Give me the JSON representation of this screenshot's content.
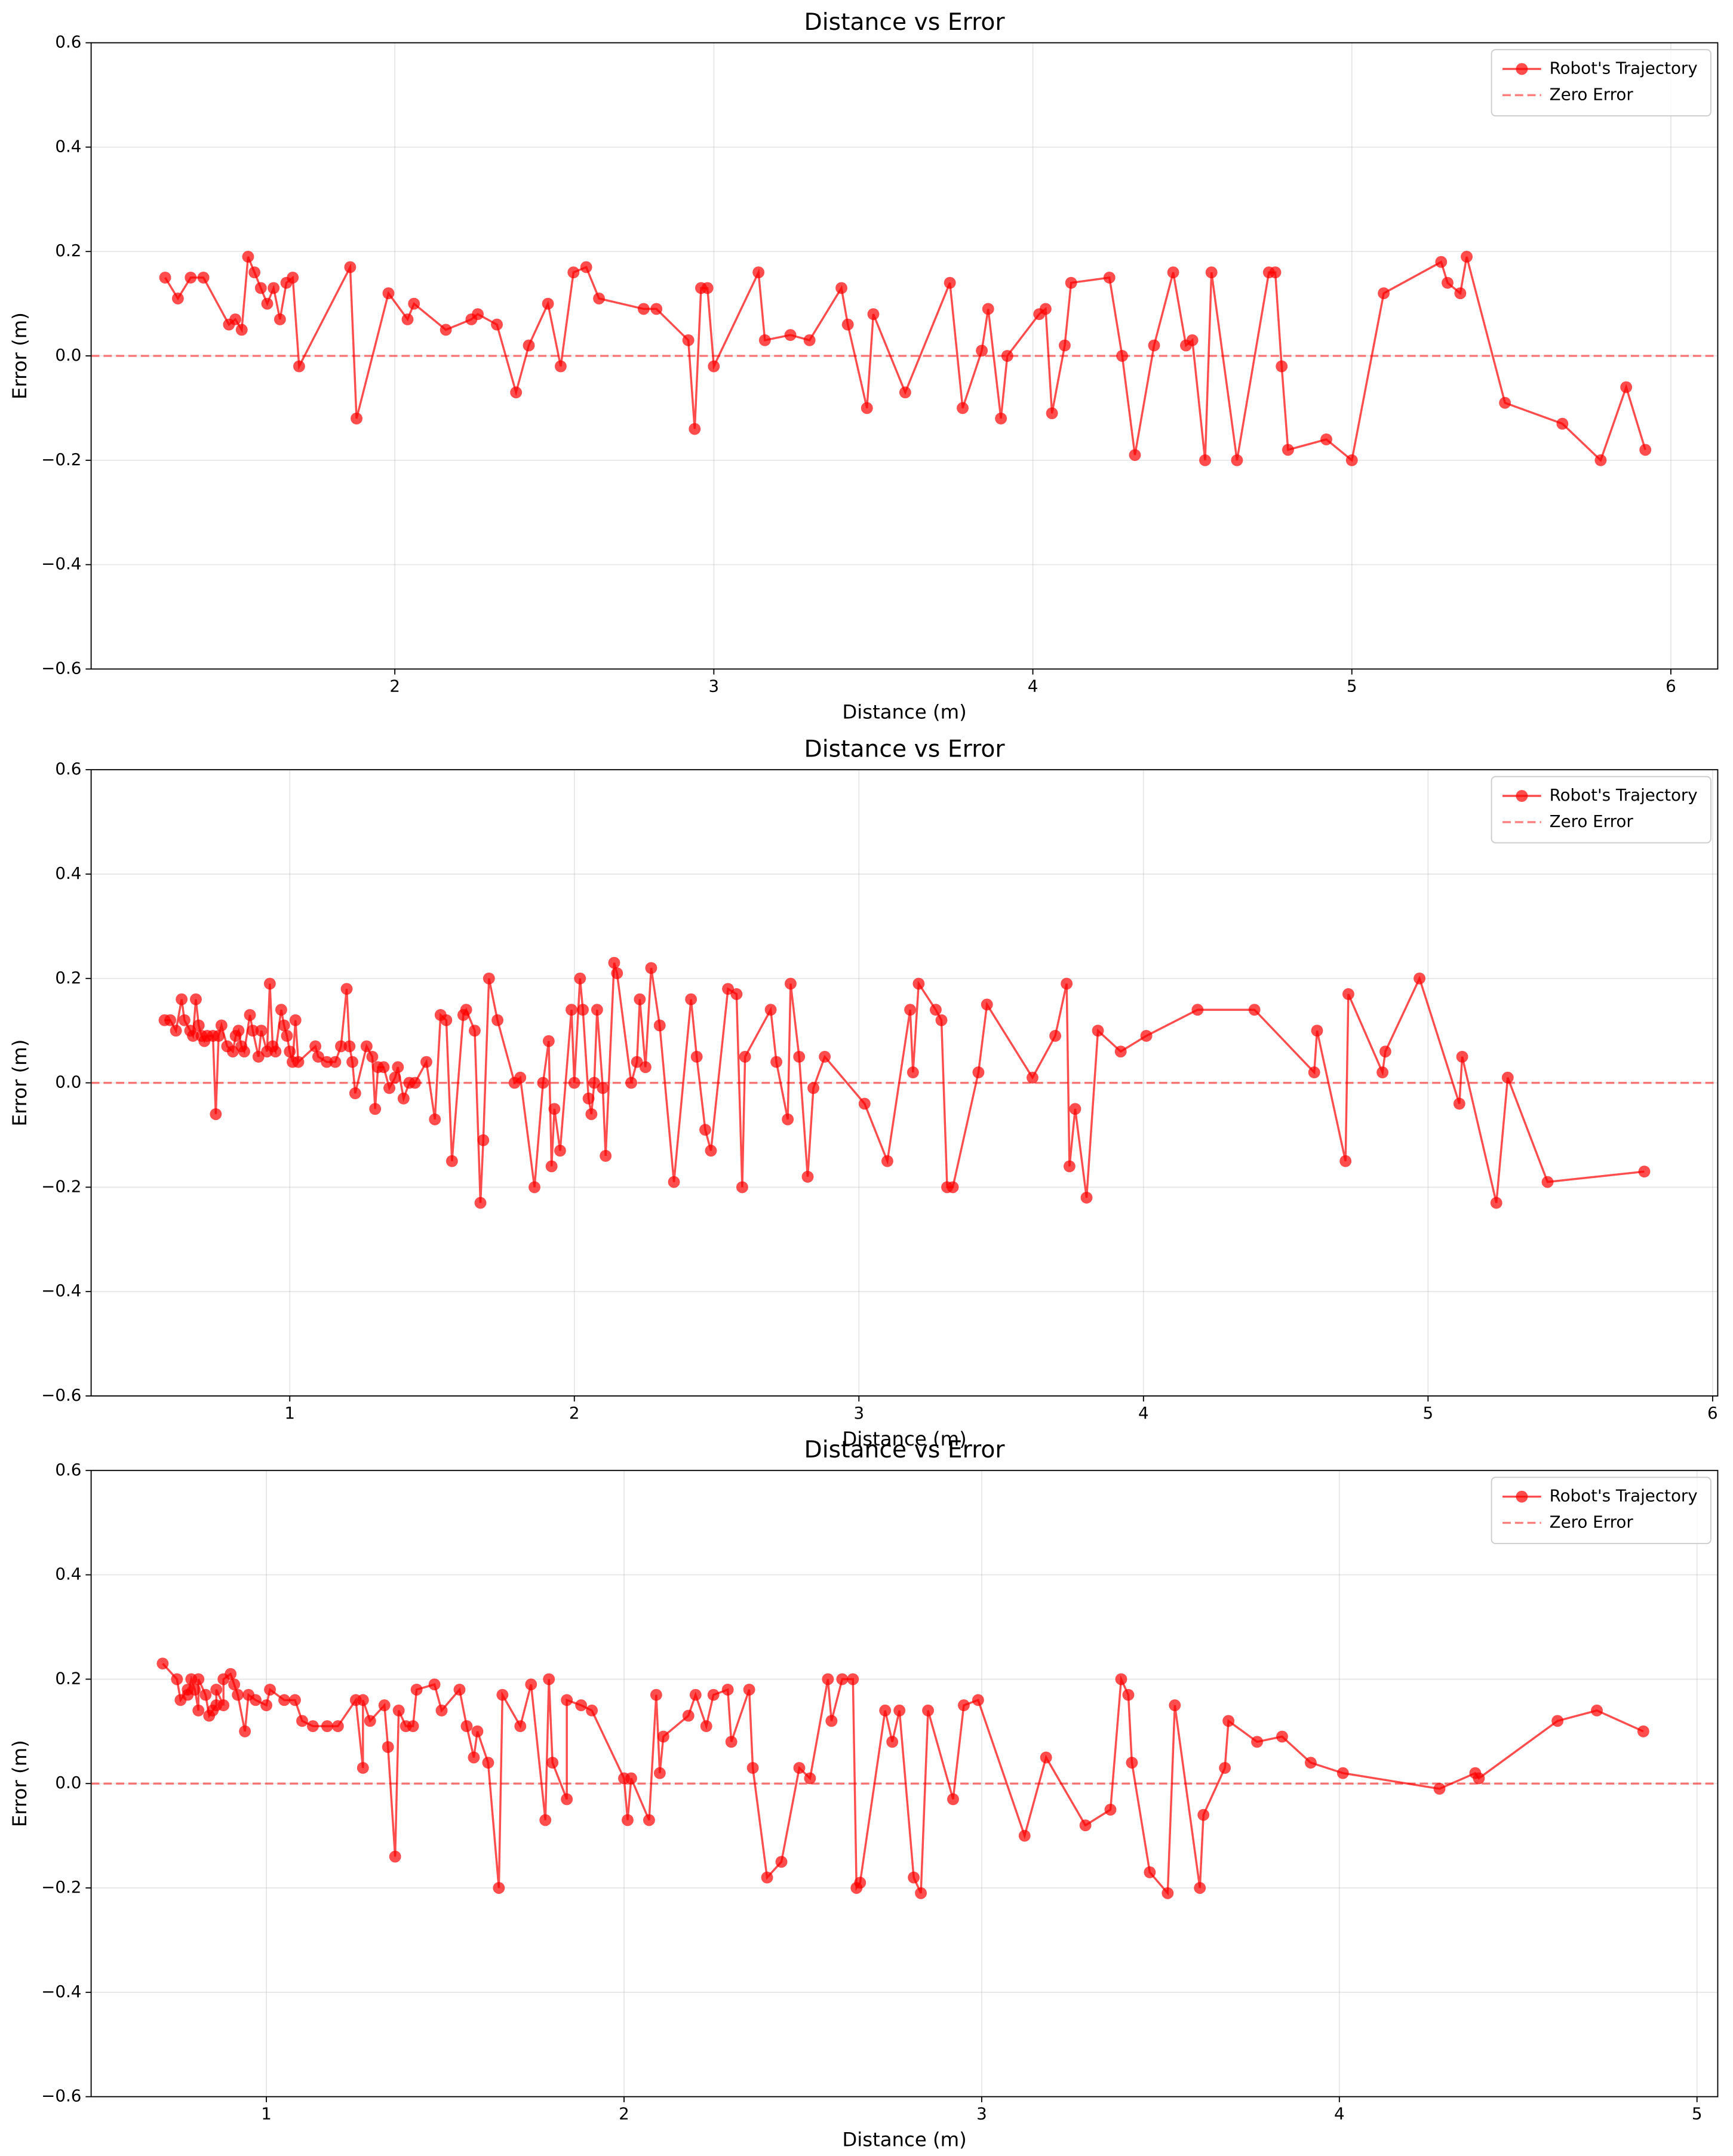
{
  "chart_data": [
    {
      "type": "line",
      "title": "Distance vs Error",
      "xlabel": "Distance (m)",
      "ylabel": "Error (m)",
      "x": [
        1.28,
        1.32,
        1.36,
        1.4,
        1.48,
        1.5,
        1.52,
        1.54,
        1.56,
        1.58,
        1.6,
        1.62,
        1.64,
        1.66,
        1.68,
        1.7,
        1.86,
        1.88,
        1.98,
        2.04,
        2.06,
        2.16,
        2.24,
        2.26,
        2.32,
        2.38,
        2.42,
        2.48,
        2.52,
        2.56,
        2.6,
        2.64,
        2.78,
        2.82,
        2.92,
        2.94,
        2.96,
        2.98,
        3.0,
        3.14,
        3.16,
        3.24,
        3.3,
        3.4,
        3.42,
        3.48,
        3.5,
        3.6,
        3.74,
        3.78,
        3.84,
        3.86,
        3.9,
        3.92,
        4.02,
        4.04,
        4.06,
        4.1,
        4.12,
        4.24,
        4.28,
        4.32,
        4.38,
        4.44,
        4.48,
        4.5,
        4.54,
        4.56,
        4.64,
        4.74,
        4.76,
        4.78,
        4.8,
        4.92,
        5.0,
        5.1,
        5.28,
        5.3,
        5.34,
        5.36,
        5.48,
        5.66,
        5.78,
        5.86,
        5.92
      ],
      "series": [
        {
          "name": "Robot's Trajectory",
          "color": "#ff0000",
          "values": [
            0.15,
            0.11,
            0.15,
            0.15,
            0.06,
            0.07,
            0.05,
            0.19,
            0.16,
            0.13,
            0.1,
            0.13,
            0.07,
            0.14,
            0.15,
            -0.02,
            0.17,
            -0.12,
            0.12,
            0.07,
            0.1,
            0.05,
            0.07,
            0.08,
            0.06,
            -0.07,
            0.02,
            0.1,
            -0.02,
            0.16,
            0.17,
            0.11,
            0.09,
            0.09,
            0.03,
            -0.14,
            0.13,
            0.13,
            -0.02,
            0.16,
            0.03,
            0.04,
            0.03,
            0.13,
            0.06,
            -0.1,
            0.08,
            -0.07,
            0.14,
            -0.1,
            0.01,
            0.09,
            -0.12,
            0,
            0.08,
            0.09,
            -0.11,
            0.02,
            0.14,
            0.15,
            0,
            -0.19,
            0.02,
            0.16,
            0.02,
            0.03,
            -0.2,
            0.16,
            -0.2,
            0.16,
            0.16,
            -0.02,
            -0.18,
            -0.16,
            -0.2,
            0.12,
            0.18,
            0.14,
            0.12,
            0.19,
            -0.09,
            -0.13,
            -0.2,
            -0.06,
            -0.18
          ]
        }
      ],
      "reference_lines": [
        {
          "name": "Zero Error",
          "value": 0,
          "color": "#ff0000"
        }
      ],
      "xlim": [
        1.048,
        6.147
      ],
      "xticks": [
        2,
        3,
        4,
        5,
        6
      ],
      "ylim": [
        -0.6,
        0.6
      ],
      "yticks": [
        {
          "value": -0.6,
          "label": "−0.6"
        },
        {
          "value": -0.4,
          "label": "−0.4"
        },
        {
          "value": -0.2,
          "label": "−0.2"
        },
        {
          "value": 0,
          "label": "0.0"
        },
        0.2,
        0.4,
        0.6
      ],
      "grid": true,
      "legend": "upper right"
    },
    {
      "type": "line",
      "title": "Distance vs Error",
      "xlabel": "Distance (m)",
      "ylabel": "Error (m)",
      "x": [
        0.56,
        0.58,
        0.6,
        0.62,
        0.63,
        0.65,
        0.66,
        0.67,
        0.68,
        0.69,
        0.7,
        0.71,
        0.73,
        0.74,
        0.75,
        0.76,
        0.78,
        0.8,
        0.81,
        0.82,
        0.83,
        0.84,
        0.86,
        0.87,
        0.89,
        0.9,
        0.92,
        0.93,
        0.94,
        0.95,
        0.97,
        0.98,
        0.99,
        1.0,
        1.01,
        1.02,
        1.03,
        1.09,
        1.1,
        1.13,
        1.16,
        1.18,
        1.2,
        1.21,
        1.22,
        1.23,
        1.27,
        1.29,
        1.3,
        1.31,
        1.33,
        1.35,
        1.37,
        1.38,
        1.4,
        1.42,
        1.44,
        1.48,
        1.51,
        1.53,
        1.55,
        1.57,
        1.61,
        1.62,
        1.65,
        1.67,
        1.68,
        1.7,
        1.73,
        1.79,
        1.81,
        1.86,
        1.89,
        1.91,
        1.92,
        1.93,
        1.95,
        1.99,
        2.0,
        2.02,
        2.03,
        2.05,
        2.06,
        2.07,
        2.08,
        2.1,
        2.11,
        2.14,
        2.15,
        2.2,
        2.22,
        2.23,
        2.25,
        2.27,
        2.3,
        2.35,
        2.41,
        2.43,
        2.46,
        2.48,
        2.54,
        2.57,
        2.59,
        2.6,
        2.69,
        2.71,
        2.75,
        2.76,
        2.79,
        2.82,
        2.84,
        2.88,
        3.02,
        3.1,
        3.18,
        3.19,
        3.21,
        3.27,
        3.29,
        3.31,
        3.33,
        3.42,
        3.45,
        3.61,
        3.69,
        3.73,
        3.74,
        3.76,
        3.8,
        3.84,
        3.92,
        4.01,
        4.19,
        4.39,
        4.6,
        4.61,
        4.71,
        4.72,
        4.84,
        4.85,
        4.97,
        5.11,
        5.12,
        5.24,
        5.28,
        5.42,
        5.76
      ],
      "series": [
        {
          "name": "Robot's Trajectory",
          "color": "#ff0000",
          "values": [
            0.12,
            0.12,
            0.1,
            0.16,
            0.12,
            0.1,
            0.09,
            0.16,
            0.11,
            0.09,
            0.08,
            0.09,
            0.09,
            -0.06,
            0.09,
            0.11,
            0.07,
            0.06,
            0.09,
            0.1,
            0.07,
            0.06,
            0.13,
            0.1,
            0.05,
            0.1,
            0.06,
            0.19,
            0.07,
            0.06,
            0.14,
            0.11,
            0.09,
            0.06,
            0.04,
            0.12,
            0.04,
            0.07,
            0.05,
            0.04,
            0.04,
            0.07,
            0.18,
            0.07,
            0.04,
            -0.02,
            0.07,
            0.05,
            -0.05,
            0.03,
            0.03,
            -0.01,
            0.01,
            0.03,
            -0.03,
            0,
            0,
            0.04,
            -0.07,
            0.13,
            0.12,
            -0.15,
            0.13,
            0.14,
            0.1,
            -0.23,
            -0.11,
            0.2,
            0.12,
            0,
            0.01,
            -0.2,
            0,
            0.08,
            -0.16,
            -0.05,
            -0.13,
            0.14,
            0,
            0.2,
            0.14,
            -0.03,
            -0.06,
            0,
            0.14,
            -0.01,
            -0.14,
            0.23,
            0.21,
            0,
            0.04,
            0.16,
            0.03,
            0.22,
            0.11,
            -0.19,
            0.16,
            0.05,
            -0.09,
            -0.13,
            0.18,
            0.17,
            -0.2,
            0.05,
            0.14,
            0.04,
            -0.07,
            0.19,
            0.05,
            -0.18,
            -0.01,
            0.05,
            -0.04,
            -0.15,
            0.14,
            0.02,
            0.19,
            0.14,
            0.12,
            -0.2,
            -0.2,
            0.02,
            0.15,
            0.01,
            0.09,
            0.19,
            -0.16,
            -0.05,
            -0.22,
            0.1,
            0.06,
            0.09,
            0.14,
            0.14,
            0.02,
            0.1,
            -0.15,
            0.17,
            0.02,
            0.06,
            0.2,
            -0.04,
            0.05,
            -0.23,
            0.01,
            -0.19,
            -0.17
          ]
        }
      ],
      "reference_lines": [
        {
          "name": "Zero Error",
          "value": 0,
          "color": "#ff0000"
        }
      ],
      "xlim": [
        0.302,
        6.018
      ],
      "xticks": [
        1,
        2,
        3,
        4,
        5,
        6
      ],
      "ylim": [
        -0.6,
        0.6
      ],
      "yticks": [
        {
          "value": -0.6,
          "label": "−0.6"
        },
        {
          "value": -0.4,
          "label": "−0.4"
        },
        {
          "value": -0.2,
          "label": "−0.2"
        },
        {
          "value": 0,
          "label": "0.0"
        },
        0.2,
        0.4,
        0.6
      ],
      "grid": true,
      "legend": "upper right"
    },
    {
      "type": "line",
      "title": "Distance vs Error",
      "xlabel": "Distance (m)",
      "ylabel": "Error (m)",
      "x": [
        0.71,
        0.75,
        0.76,
        0.78,
        0.78,
        0.79,
        0.8,
        0.81,
        0.81,
        0.83,
        0.84,
        0.85,
        0.86,
        0.86,
        0.88,
        0.88,
        0.9,
        0.91,
        0.92,
        0.94,
        0.95,
        0.97,
        1.0,
        1.01,
        1.05,
        1.08,
        1.1,
        1.13,
        1.17,
        1.2,
        1.25,
        1.27,
        1.27,
        1.29,
        1.33,
        1.34,
        1.36,
        1.37,
        1.39,
        1.41,
        1.42,
        1.47,
        1.49,
        1.54,
        1.56,
        1.58,
        1.59,
        1.62,
        1.65,
        1.66,
        1.71,
        1.74,
        1.78,
        1.79,
        1.8,
        1.84,
        1.84,
        1.88,
        1.91,
        2.0,
        2.01,
        2.02,
        2.07,
        2.09,
        2.1,
        2.11,
        2.18,
        2.2,
        2.23,
        2.25,
        2.29,
        2.3,
        2.35,
        2.36,
        2.4,
        2.44,
        2.49,
        2.52,
        2.57,
        2.58,
        2.61,
        2.64,
        2.65,
        2.66,
        2.73,
        2.75,
        2.77,
        2.81,
        2.83,
        2.85,
        2.92,
        2.95,
        2.99,
        3.12,
        3.18,
        3.29,
        3.36,
        3.39,
        3.41,
        3.42,
        3.47,
        3.52,
        3.54,
        3.61,
        3.62,
        3.68,
        3.69,
        3.77,
        3.84,
        3.92,
        4.01,
        4.28,
        4.38,
        4.39,
        4.61,
        4.72,
        4.85
      ],
      "series": [
        {
          "name": "Robot's Trajectory",
          "color": "#ff0000",
          "values": [
            0.23,
            0.2,
            0.16,
            0.18,
            0.17,
            0.2,
            0.18,
            0.14,
            0.2,
            0.17,
            0.13,
            0.14,
            0.15,
            0.18,
            0.15,
            0.2,
            0.21,
            0.19,
            0.17,
            0.1,
            0.17,
            0.16,
            0.15,
            0.18,
            0.16,
            0.16,
            0.12,
            0.11,
            0.11,
            0.11,
            0.16,
            0.03,
            0.16,
            0.12,
            0.15,
            0.07,
            -0.14,
            0.14,
            0.11,
            0.11,
            0.18,
            0.19,
            0.14,
            0.18,
            0.11,
            0.05,
            0.1,
            0.04,
            -0.2,
            0.17,
            0.11,
            0.19,
            -0.07,
            0.2,
            0.04,
            -0.03,
            0.16,
            0.15,
            0.14,
            0.01,
            -0.07,
            0.01,
            -0.07,
            0.17,
            0.02,
            0.09,
            0.13,
            0.17,
            0.11,
            0.17,
            0.18,
            0.08,
            0.18,
            0.03,
            -0.18,
            -0.15,
            0.03,
            0.01,
            0.2,
            0.12,
            0.2,
            0.2,
            -0.2,
            -0.19,
            0.14,
            0.08,
            0.14,
            -0.18,
            -0.21,
            0.14,
            -0.03,
            0.15,
            0.16,
            -0.1,
            0.05,
            -0.08,
            -0.05,
            0.2,
            0.17,
            0.04,
            -0.17,
            -0.21,
            0.15,
            -0.2,
            -0.06,
            0.03,
            0.12,
            0.08,
            0.09,
            0.04,
            0.02,
            -0.01,
            0.02,
            0.01,
            0.12,
            0.14,
            0.1
          ]
        }
      ],
      "reference_lines": [
        {
          "name": "Zero Error",
          "value": 0,
          "color": "#ff0000"
        }
      ],
      "xlim": [
        0.51,
        5.058
      ],
      "xticks": [
        1,
        2,
        3,
        4,
        5
      ],
      "ylim": [
        -0.6,
        0.6
      ],
      "yticks": [
        {
          "value": -0.6,
          "label": "−0.6"
        },
        {
          "value": -0.4,
          "label": "−0.4"
        },
        {
          "value": -0.2,
          "label": "−0.2"
        },
        {
          "value": 0,
          "label": "0.0"
        },
        0.2,
        0.4,
        0.6
      ],
      "grid": true,
      "legend": "upper right"
    }
  ]
}
